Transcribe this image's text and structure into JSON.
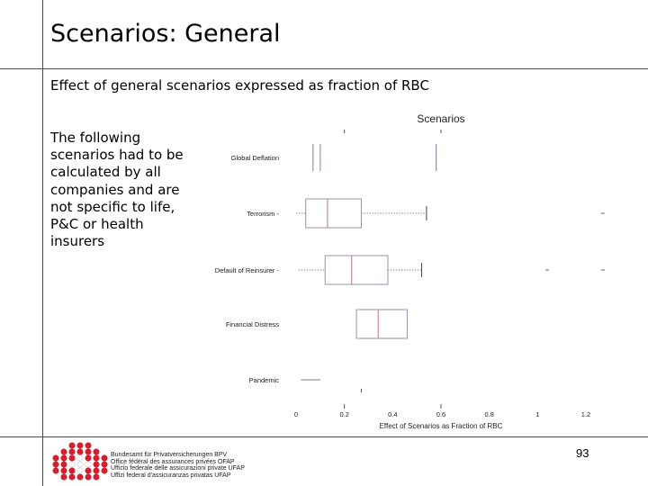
{
  "slide": {
    "title": "Scenarios: General",
    "subtitle": "Effect of general scenarios expressed as fraction of RBC",
    "body": "The following scenarios had to be calculated by all companies and are not specific to life, P&C or health insurers",
    "page_number": "93"
  },
  "footer": {
    "agency_lines": [
      "Bundesamt für Privatversicherungen BPV",
      "Office fédéral des assurances privées OFAP",
      "Ufficio federale delle assicurazioni private UFAP",
      "Uffizi federal d'assicuranzas privatas UFAP"
    ],
    "accent_color": "#d3202f"
  },
  "chart_data": {
    "type": "boxplot",
    "title": "Scenarios",
    "xlabel": "Effect of Scenarios as Fraction of RBC",
    "xlim": [
      0,
      1.2
    ],
    "xticks": [
      0,
      0.2,
      0.4,
      0.6,
      0.8,
      1,
      1.2
    ],
    "xtick_labels": [
      "0",
      "0.2",
      "0.4",
      "0.6",
      "0.8",
      "1",
      "1.2"
    ],
    "box_color": "#9b8fb0",
    "median_color": "#c48a9a",
    "categories": [
      "Global Deflation",
      "Terrorism",
      "Default of Reinsurer",
      "Financial Distress",
      "Pandemic"
    ],
    "boxes": [
      {
        "label": "Global Deflation",
        "q1": 0.07,
        "median": 0.1,
        "q3": 0.58,
        "whisker_low": null,
        "whisker_high": null,
        "outliers": []
      },
      {
        "label": "Terrorism",
        "q1": 0.04,
        "median": 0.13,
        "q3": 0.27,
        "whisker_low": 0.0,
        "whisker_high": 0.54,
        "outliers": [
          1.27
        ]
      },
      {
        "label": "Default of Reinsurer",
        "q1": 0.12,
        "median": 0.23,
        "q3": 0.38,
        "whisker_low": 0.01,
        "whisker_high": 0.52,
        "outliers": [
          1.04,
          1.27
        ]
      },
      {
        "label": "Financial Distress",
        "q1": 0.25,
        "median": 0.34,
        "q3": 0.46,
        "whisker_low": null,
        "whisker_high": null,
        "outliers": []
      },
      {
        "label": "Pandemic",
        "q1": 0.02,
        "median": 0.05,
        "q3": 0.1,
        "whisker_low": null,
        "whisker_high": null,
        "outliers": [
          0.27
        ]
      }
    ],
    "legend": false,
    "grid": false
  }
}
